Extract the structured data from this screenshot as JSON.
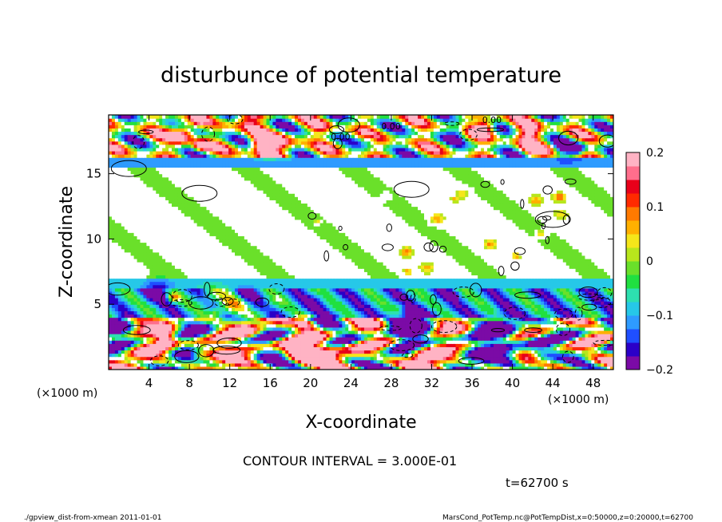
{
  "chart_data": {
    "type": "heatmap",
    "title": "disturbunce of potential temperature",
    "xlabel": "X-coordinate",
    "ylabel": "Z-coordinate",
    "x_unit": "(×1000 m)",
    "y_unit": "(×1000 m)",
    "xlim": [
      0,
      50
    ],
    "ylim": [
      0,
      19.5
    ],
    "x_ticks": [
      4,
      8,
      12,
      16,
      20,
      24,
      28,
      32,
      36,
      40,
      44,
      48
    ],
    "y_ticks": [
      5,
      10,
      15
    ],
    "colorbar": {
      "range": [
        -0.2,
        0.2
      ],
      "tick_values": [
        0.2,
        0.1,
        0,
        -0.1,
        -0.2
      ],
      "tick_labels": [
        "0.2",
        "0.1",
        "0",
        "−0.1",
        "−0.2"
      ],
      "colors": [
        "#7b0aa6",
        "#2b00c8",
        "#1f4fff",
        "#2e9bff",
        "#26c8e8",
        "#2de0b0",
        "#20e040",
        "#6ae02a",
        "#b8e61c",
        "#f5e61a",
        "#ffb000",
        "#ff7a00",
        "#ff2a00",
        "#e8001a",
        "#ff6e8c",
        "#ffb3c4"
      ]
    },
    "contour_interval": "CONTOUR INTERVAL = 3.000E-01",
    "time_label": "t=62700 s",
    "contour_label": "0.00"
  },
  "footer": {
    "left": "./gpview_dist-from-xmean  2011-01-01",
    "right": "MarsCond_PotTemp.nc@PotTempDist,x=0:50000,z=0:20000,t=62700"
  }
}
